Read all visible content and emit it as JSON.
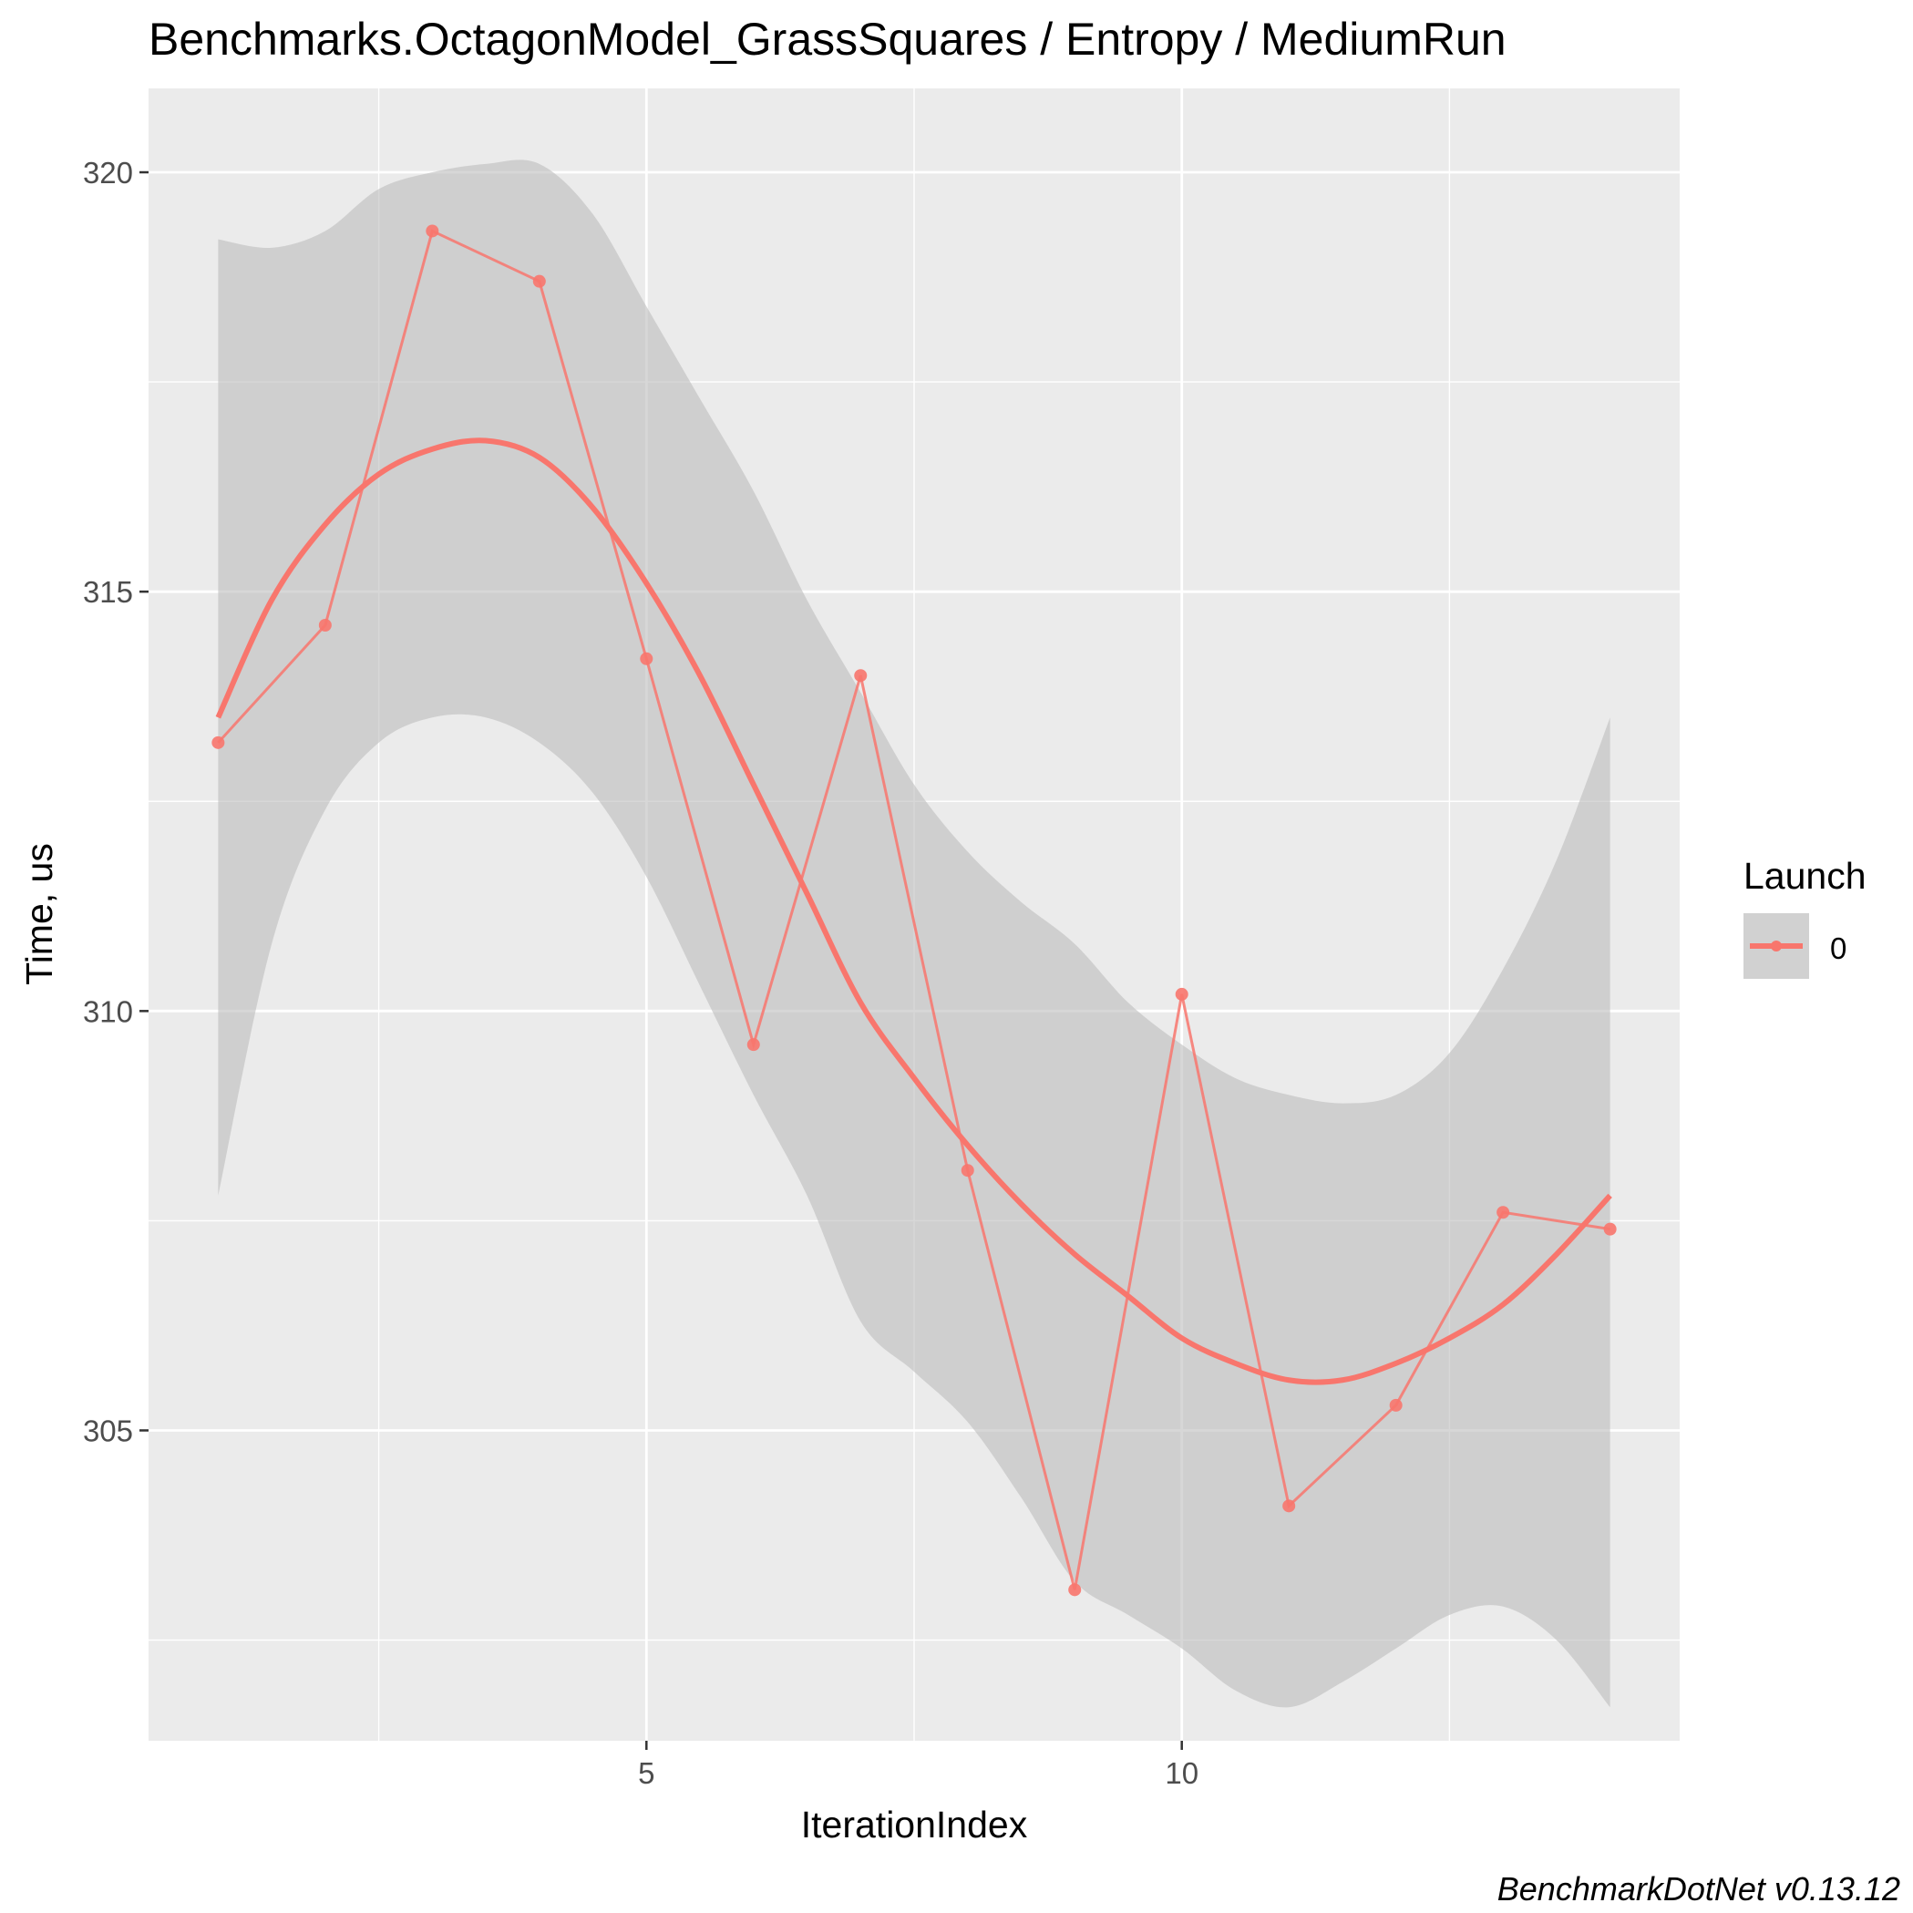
{
  "chart_data": {
    "type": "line",
    "title": "Benchmarks.OctagonModel_GrassSquares / Entropy / MediumRun",
    "xlabel": "IterationIndex",
    "ylabel": "Time, us",
    "xlim": [
      0.35,
      14.65
    ],
    "ylim": [
      301.3,
      321.0
    ],
    "x_ticks": [
      5,
      10
    ],
    "x_tick_labels": [
      "5",
      "10"
    ],
    "y_ticks": [
      305,
      310,
      315,
      320
    ],
    "y_tick_labels": [
      "305",
      "310",
      "315",
      "320"
    ],
    "grid": true,
    "legend": {
      "title": "Launch",
      "position": "right",
      "entries": [
        "0"
      ]
    },
    "series": [
      {
        "name": "0",
        "color": "#F8766D",
        "x": [
          1,
          2,
          3,
          4,
          5,
          6,
          7,
          8,
          9,
          10,
          11,
          12,
          13,
          14
        ],
        "values": [
          313.2,
          314.6,
          319.3,
          318.7,
          314.2,
          309.6,
          314.0,
          308.1,
          303.1,
          310.2,
          304.1,
          305.3,
          307.6,
          307.4
        ]
      }
    ],
    "smooth": {
      "x": [
        1,
        1.5,
        2,
        2.5,
        3,
        3.5,
        4,
        4.5,
        5,
        5.5,
        6,
        6.5,
        7,
        7.5,
        8,
        8.5,
        9,
        9.5,
        10,
        10.5,
        11,
        11.5,
        12,
        12.5,
        13,
        13.5,
        14
      ],
      "y": [
        313.5,
        314.9,
        315.8,
        316.4,
        316.7,
        316.8,
        316.6,
        316.0,
        315.1,
        314.0,
        312.7,
        311.4,
        310.1,
        309.2,
        308.4,
        307.7,
        307.1,
        306.6,
        306.1,
        305.8,
        305.6,
        305.6,
        305.8,
        306.1,
        306.5,
        307.1,
        307.8
      ],
      "ymin": [
        307.8,
        310.8,
        312.4,
        313.2,
        313.5,
        313.5,
        313.2,
        312.6,
        311.6,
        310.3,
        309.0,
        307.8,
        306.3,
        305.7,
        305.1,
        304.2,
        303.2,
        302.8,
        302.4,
        301.9,
        301.7,
        302.0,
        302.4,
        302.8,
        302.9,
        302.5,
        301.7
      ],
      "ymax": [
        319.2,
        319.1,
        319.3,
        319.8,
        320.0,
        320.1,
        320.1,
        319.5,
        318.4,
        317.3,
        316.2,
        314.9,
        313.8,
        312.7,
        311.9,
        311.3,
        310.8,
        310.1,
        309.6,
        309.2,
        309.0,
        308.9,
        309.0,
        309.5,
        310.5,
        311.8,
        313.5
      ]
    },
    "colors": {
      "panel": "#EBEBEB",
      "grid": "#FFFFFF",
      "ribbon": "#BEBEBE",
      "line": "#F8766D",
      "text": "#000000",
      "tick_text": "#4D4D4D"
    },
    "caption": "BenchmarkDotNet v0.13.12"
  }
}
